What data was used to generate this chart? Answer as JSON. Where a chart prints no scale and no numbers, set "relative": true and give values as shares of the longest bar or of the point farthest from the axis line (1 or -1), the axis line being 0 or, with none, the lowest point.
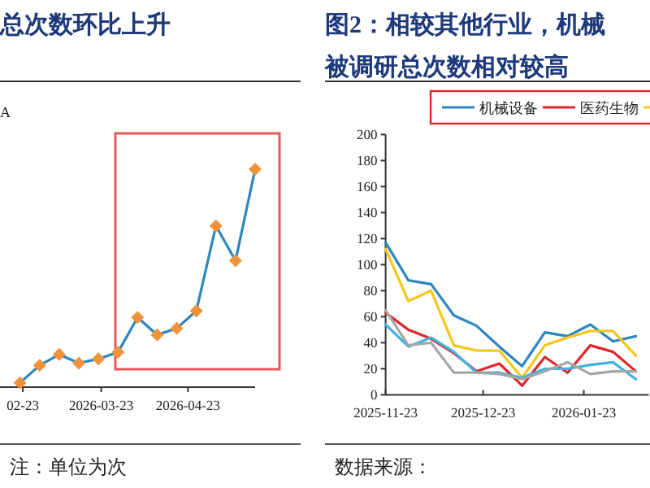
{
  "chart_data": [
    {
      "type": "line",
      "title": "总次数环比上升",
      "relative": true,
      "color": "#2e86c1",
      "marker": "diamond",
      "x": [
        "2026-02-22",
        "2026-03-01",
        "2026-03-08",
        "2026-03-15",
        "2026-03-22",
        "2026-03-29",
        "2026-04-05",
        "2026-04-12",
        "2026-04-19",
        "2026-04-26",
        "2026-05-03",
        "2026-05-10",
        "2026-05-17"
      ],
      "values": [
        0.02,
        0.1,
        0.15,
        0.11,
        0.13,
        0.16,
        0.32,
        0.24,
        0.27,
        0.35,
        0.74,
        0.58,
        1
      ],
      "xlim": [
        "2026-02-16",
        "2026-05-17"
      ],
      "xticks": [
        {
          "value": "2026-02-23",
          "label": "02-23"
        },
        {
          "value": "2026-03-23",
          "label": "2026-03-23"
        },
        {
          "value": "2026-04-23",
          "label": "2026-04-23"
        }
      ],
      "annotations": [
        "A",
        "注：单位为次"
      ]
    },
    {
      "type": "line",
      "title": "图2：相较其他行业，机械",
      "subtitle": "被调研总次数相对较高",
      "legend": "top",
      "x": [
        "2025-11-23",
        "2025-11-30",
        "2025-12-07",
        "2025-12-14",
        "2025-12-21",
        "2025-12-28",
        "2026-01-04",
        "2026-01-11",
        "2026-01-18",
        "2026-01-25",
        "2026-02-01",
        "2026-02-08"
      ],
      "series": [
        {
          "name": "机械设备",
          "color": "#2e86c1",
          "values": [
            117,
            88,
            85,
            61,
            53,
            37,
            22,
            48,
            45,
            54,
            41,
            45
          ]
        },
        {
          "name": "医药生物",
          "color": "#e0262b",
          "values": [
            63,
            50,
            43,
            32,
            18,
            24,
            7,
            29,
            17,
            38,
            33,
            18
          ]
        },
        {
          "color": "#f5c518",
          "values": [
            112,
            72,
            80,
            38,
            34,
            34,
            13,
            38,
            44,
            49,
            49,
            30
          ]
        },
        {
          "color": "#40b4e0",
          "values": [
            54,
            37,
            44,
            33,
            17,
            17,
            13,
            20,
            20,
            23,
            25,
            12
          ]
        },
        {
          "color": "#a6a6a6",
          "values": [
            65,
            38,
            40,
            17,
            17,
            16,
            12,
            18,
            25,
            16,
            18,
            18
          ]
        }
      ],
      "xlim": [
        "2025-11-23",
        "2026-02-12"
      ],
      "ylim": [
        0,
        200
      ],
      "yticks": [
        0,
        20,
        40,
        60,
        80,
        100,
        120,
        140,
        160,
        180,
        200
      ],
      "xticks": [
        "2025-11-23",
        "2025-12-23",
        "2026-01-23"
      ],
      "annotations": [
        "数据来源："
      ]
    }
  ]
}
